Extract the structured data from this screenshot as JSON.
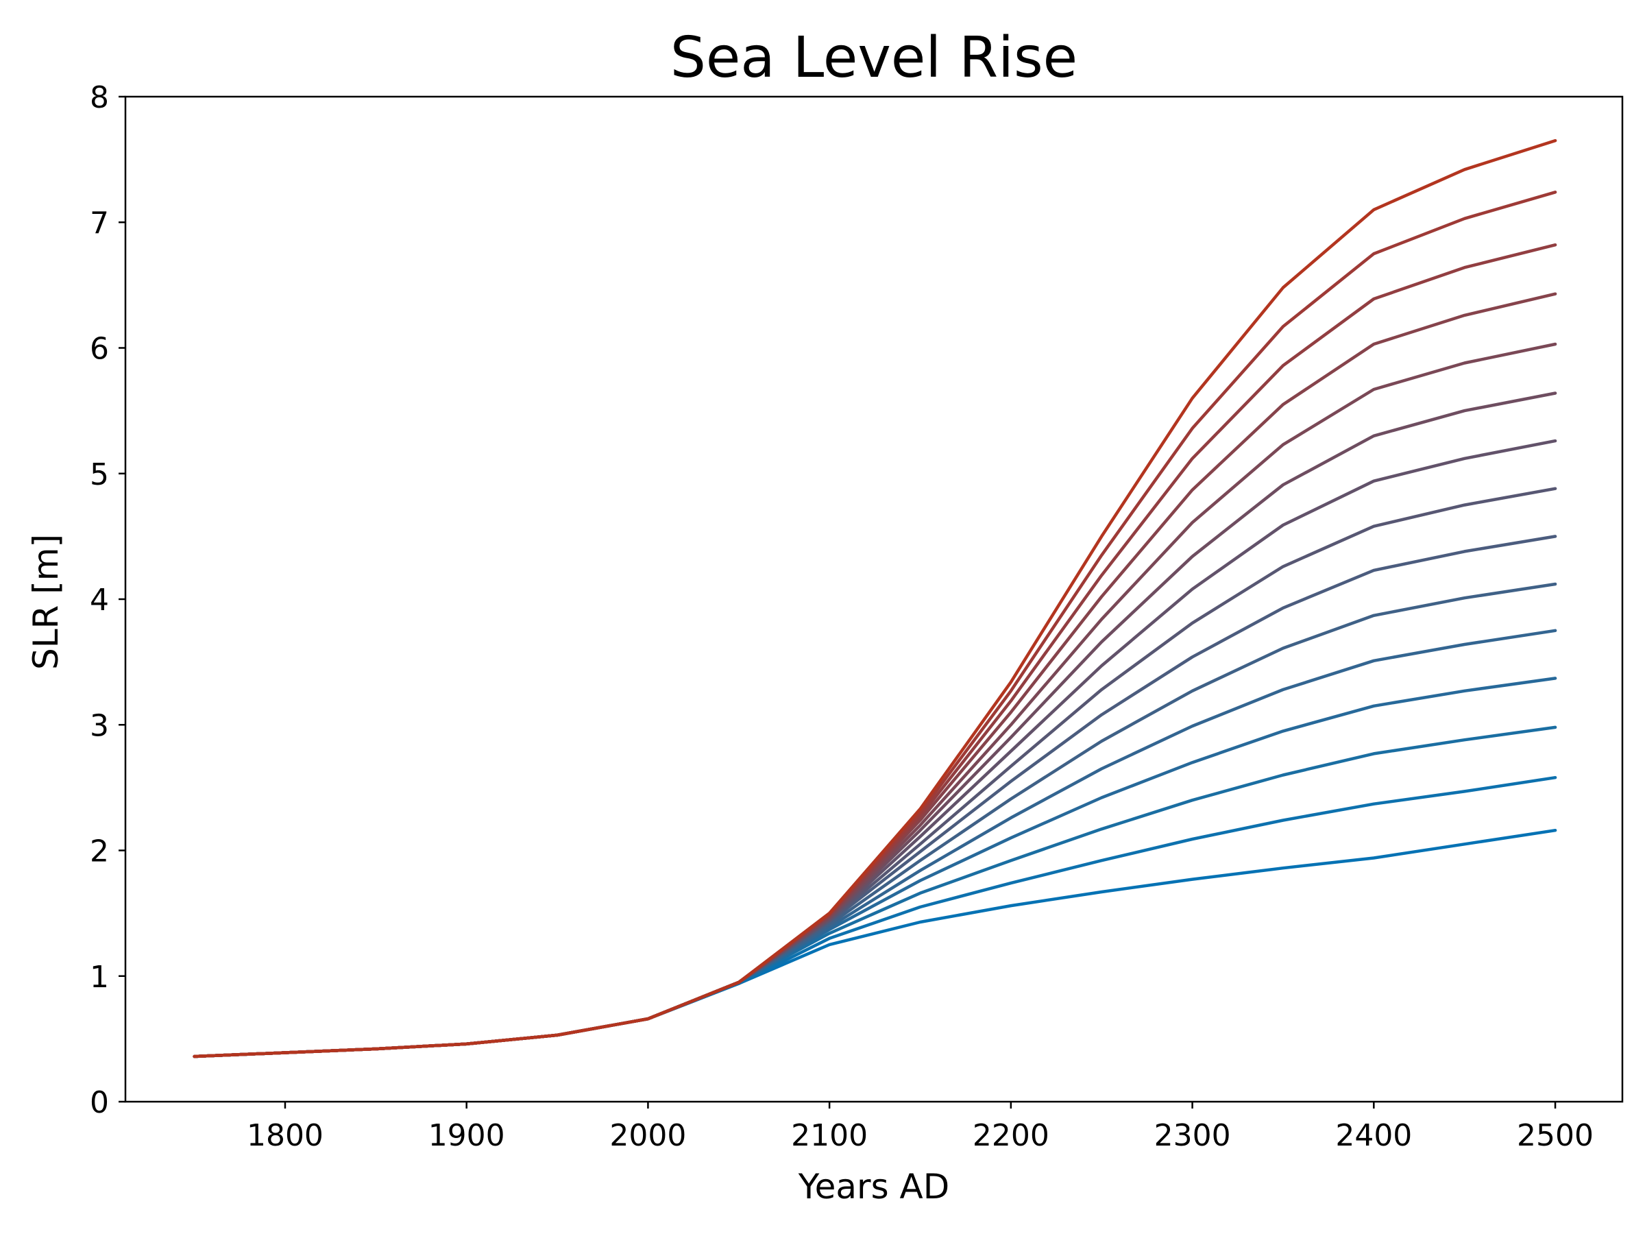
{
  "chart_data": {
    "type": "line",
    "title": "Sea Level Rise",
    "xlabel": "Years AD",
    "ylabel": "SLR [m]",
    "xlim": [
      1712,
      2537
    ],
    "ylim": [
      0,
      8
    ],
    "xticks": [
      1800,
      1900,
      2000,
      2100,
      2200,
      2300,
      2400,
      2500
    ],
    "yticks": [
      0,
      1,
      2,
      3,
      4,
      5,
      6,
      7,
      8
    ],
    "grid": false,
    "legend": "none",
    "colors": {
      "low": "#0072b5",
      "high": "#c8331a"
    },
    "x": [
      1750,
      1800,
      1850,
      1900,
      1950,
      2000,
      2050,
      2100,
      2150,
      2200,
      2250,
      2300,
      2350,
      2400,
      2450,
      2500
    ],
    "series": [
      {
        "color": "#0572b4",
        "values": [
          0.36,
          0.39,
          0.42,
          0.46,
          0.53,
          0.66,
          0.94,
          1.25,
          1.43,
          1.56,
          1.67,
          1.77,
          1.86,
          1.94,
          2.05,
          2.16
        ]
      },
      {
        "color": "#0d71ae",
        "values": [
          0.36,
          0.39,
          0.42,
          0.46,
          0.53,
          0.66,
          0.94,
          1.3,
          1.55,
          1.74,
          1.92,
          2.09,
          2.24,
          2.37,
          2.47,
          2.58
        ]
      },
      {
        "color": "#1a6ea2",
        "values": [
          0.36,
          0.39,
          0.42,
          0.46,
          0.53,
          0.66,
          0.95,
          1.34,
          1.66,
          1.92,
          2.17,
          2.4,
          2.6,
          2.77,
          2.88,
          2.98
        ]
      },
      {
        "color": "#27699a",
        "values": [
          0.36,
          0.39,
          0.42,
          0.46,
          0.53,
          0.66,
          0.95,
          1.37,
          1.76,
          2.1,
          2.42,
          2.7,
          2.95,
          3.15,
          3.27,
          3.37
        ]
      },
      {
        "color": "#336591",
        "values": [
          0.36,
          0.39,
          0.42,
          0.46,
          0.53,
          0.66,
          0.95,
          1.39,
          1.84,
          2.26,
          2.65,
          2.99,
          3.28,
          3.51,
          3.64,
          3.75
        ]
      },
      {
        "color": "#3f6187",
        "values": [
          0.36,
          0.39,
          0.42,
          0.46,
          0.53,
          0.66,
          0.95,
          1.41,
          1.92,
          2.41,
          2.87,
          3.27,
          3.61,
          3.87,
          4.01,
          4.12
        ]
      },
      {
        "color": "#4b5c7e",
        "values": [
          0.36,
          0.39,
          0.42,
          0.46,
          0.53,
          0.66,
          0.95,
          1.43,
          1.99,
          2.55,
          3.08,
          3.54,
          3.93,
          4.23,
          4.38,
          4.5
        ]
      },
      {
        "color": "#575773",
        "values": [
          0.36,
          0.39,
          0.42,
          0.46,
          0.53,
          0.66,
          0.95,
          1.44,
          2.05,
          2.67,
          3.28,
          3.81,
          4.26,
          4.58,
          4.75,
          4.88
        ]
      },
      {
        "color": "#62526a",
        "values": [
          0.36,
          0.39,
          0.42,
          0.46,
          0.53,
          0.66,
          0.95,
          1.45,
          2.11,
          2.79,
          3.47,
          4.08,
          4.59,
          4.94,
          5.12,
          5.26
        ]
      },
      {
        "color": "#6e4d60",
        "values": [
          0.36,
          0.39,
          0.42,
          0.46,
          0.53,
          0.66,
          0.95,
          1.46,
          2.16,
          2.9,
          3.66,
          4.34,
          4.91,
          5.3,
          5.5,
          5.64
        ]
      },
      {
        "color": "#7a4856",
        "values": [
          0.36,
          0.39,
          0.42,
          0.46,
          0.53,
          0.66,
          0.95,
          1.47,
          2.2,
          3.0,
          3.84,
          4.61,
          5.23,
          5.67,
          5.88,
          6.03
        ]
      },
      {
        "color": "#86434b",
        "values": [
          0.36,
          0.39,
          0.42,
          0.46,
          0.53,
          0.66,
          0.95,
          1.48,
          2.24,
          3.1,
          4.02,
          4.87,
          5.55,
          6.03,
          6.26,
          6.43
        ]
      },
      {
        "color": "#923e41",
        "values": [
          0.36,
          0.39,
          0.42,
          0.46,
          0.53,
          0.66,
          0.95,
          1.49,
          2.27,
          3.19,
          4.19,
          5.12,
          5.86,
          6.39,
          6.64,
          6.82
        ]
      },
      {
        "color": "#9e3a36",
        "values": [
          0.36,
          0.39,
          0.42,
          0.46,
          0.53,
          0.66,
          0.95,
          1.49,
          2.3,
          3.27,
          4.35,
          5.36,
          6.17,
          6.75,
          7.03,
          7.24
        ]
      },
      {
        "color": "#b3351f",
        "values": [
          0.36,
          0.39,
          0.42,
          0.46,
          0.53,
          0.66,
          0.95,
          1.5,
          2.33,
          3.34,
          4.5,
          5.6,
          6.48,
          7.1,
          7.42,
          7.65
        ]
      }
    ]
  }
}
